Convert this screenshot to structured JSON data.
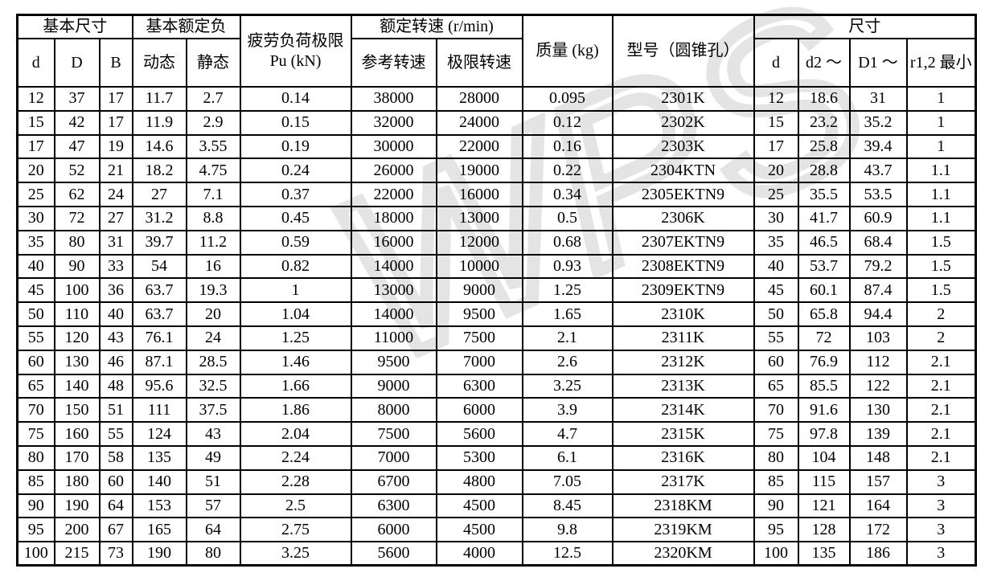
{
  "page": {
    "background": "#ffffff"
  },
  "watermark": {
    "text": "WPS",
    "color": "#e4e4e4"
  },
  "table": {
    "border_color": "#000000",
    "header": {
      "basic_dimensions": "基本尺寸",
      "basic_load_rating": "基本额定负",
      "fatigue_load_limit": "疲劳负荷极限 Pu (kN)",
      "rated_speed": "额定转速 (r/min)",
      "mass": "质量 (kg)",
      "model": "型号（圆锥孔）",
      "dimensions": "尺寸",
      "sub": [
        "d",
        "D",
        "B",
        "动态",
        "静态",
        "参考转速",
        "极限转速",
        "d",
        "d2 ～",
        "D1 ～",
        "r1,2 最小"
      ]
    },
    "rows": [
      [
        "12",
        "37",
        "17",
        "11.7",
        "2.7",
        "0.14",
        "38000",
        "28000",
        "0.095",
        "2301K",
        "12",
        "18.6",
        "31",
        "1"
      ],
      [
        "15",
        "42",
        "17",
        "11.9",
        "2.9",
        "0.15",
        "32000",
        "24000",
        "0.12",
        "2302K",
        "15",
        "23.2",
        "35.2",
        "1"
      ],
      [
        "17",
        "47",
        "19",
        "14.6",
        "3.55",
        "0.19",
        "30000",
        "22000",
        "0.16",
        "2303K",
        "17",
        "25.8",
        "39.4",
        "1"
      ],
      [
        "20",
        "52",
        "21",
        "18.2",
        "4.75",
        "0.24",
        "26000",
        "19000",
        "0.22",
        "2304KTN",
        "20",
        "28.8",
        "43.7",
        "1.1"
      ],
      [
        "25",
        "62",
        "24",
        "27",
        "7.1",
        "0.37",
        "22000",
        "16000",
        "0.34",
        "2305EKTN9",
        "25",
        "35.5",
        "53.5",
        "1.1"
      ],
      [
        "30",
        "72",
        "27",
        "31.2",
        "8.8",
        "0.45",
        "18000",
        "13000",
        "0.5",
        "2306K",
        "30",
        "41.7",
        "60.9",
        "1.1"
      ],
      [
        "35",
        "80",
        "31",
        "39.7",
        "11.2",
        "0.59",
        "16000",
        "12000",
        "0.68",
        "2307EKTN9",
        "35",
        "46.5",
        "68.4",
        "1.5"
      ],
      [
        "40",
        "90",
        "33",
        "54",
        "16",
        "0.82",
        "14000",
        "10000",
        "0.93",
        "2308EKTN9",
        "40",
        "53.7",
        "79.2",
        "1.5"
      ],
      [
        "45",
        "100",
        "36",
        "63.7",
        "19.3",
        "1",
        "13000",
        "9000",
        "1.25",
        "2309EKTN9",
        "45",
        "60.1",
        "87.4",
        "1.5"
      ],
      [
        "50",
        "110",
        "40",
        "63.7",
        "20",
        "1.04",
        "14000",
        "9500",
        "1.65",
        "2310K",
        "50",
        "65.8",
        "94.4",
        "2"
      ],
      [
        "55",
        "120",
        "43",
        "76.1",
        "24",
        "1.25",
        "11000",
        "7500",
        "2.1",
        "2311K",
        "55",
        "72",
        "103",
        "2"
      ],
      [
        "60",
        "130",
        "46",
        "87.1",
        "28.5",
        "1.46",
        "9500",
        "7000",
        "2.6",
        "2312K",
        "60",
        "76.9",
        "112",
        "2.1"
      ],
      [
        "65",
        "140",
        "48",
        "95.6",
        "32.5",
        "1.66",
        "9000",
        "6300",
        "3.25",
        "2313K",
        "65",
        "85.5",
        "122",
        "2.1"
      ],
      [
        "70",
        "150",
        "51",
        "111",
        "37.5",
        "1.86",
        "8000",
        "6000",
        "3.9",
        "2314K",
        "70",
        "91.6",
        "130",
        "2.1"
      ],
      [
        "75",
        "160",
        "55",
        "124",
        "43",
        "2.04",
        "7500",
        "5600",
        "4.7",
        "2315K",
        "75",
        "97.8",
        "139",
        "2.1"
      ],
      [
        "80",
        "170",
        "58",
        "135",
        "49",
        "2.24",
        "7000",
        "5300",
        "6.1",
        "2316K",
        "80",
        "104",
        "148",
        "2.1"
      ],
      [
        "85",
        "180",
        "60",
        "140",
        "51",
        "2.28",
        "6700",
        "4800",
        "7.05",
        "2317K",
        "85",
        "115",
        "157",
        "3"
      ],
      [
        "90",
        "190",
        "64",
        "153",
        "57",
        "2.5",
        "6300",
        "4500",
        "8.45",
        "2318KM",
        "90",
        "121",
        "164",
        "3"
      ],
      [
        "95",
        "200",
        "67",
        "165",
        "64",
        "2.75",
        "6000",
        "4500",
        "9.8",
        "2319KM",
        "95",
        "128",
        "172",
        "3"
      ],
      [
        "100",
        "215",
        "73",
        "190",
        "80",
        "3.25",
        "5600",
        "4000",
        "12.5",
        "2320KM",
        "100",
        "135",
        "186",
        "3"
      ]
    ]
  }
}
